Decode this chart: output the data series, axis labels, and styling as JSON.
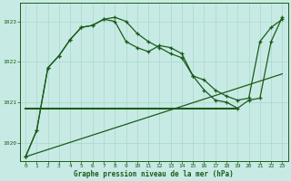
{
  "background_color": "#c8eae4",
  "grid_color": "#a8d8cc",
  "line_color": "#1a5c1a",
  "xlabel": "Graphe pression niveau de la mer (hPa)",
  "xlim": [
    -0.5,
    23.5
  ],
  "ylim": [
    1019.55,
    1023.45
  ],
  "yticks": [
    1020,
    1021,
    1022,
    1023
  ],
  "xticks": [
    0,
    1,
    2,
    3,
    4,
    5,
    6,
    7,
    8,
    9,
    10,
    11,
    12,
    13,
    14,
    15,
    16,
    17,
    18,
    19,
    20,
    21,
    22,
    23
  ],
  "series1_marked": {
    "x": [
      0,
      1,
      2,
      3,
      4,
      5,
      6,
      7,
      8,
      9,
      10,
      11,
      12,
      13,
      14,
      15,
      16,
      17,
      18,
      19,
      20,
      21,
      22,
      23
    ],
    "y": [
      1019.65,
      1020.3,
      1021.85,
      1022.15,
      1022.55,
      1022.85,
      1022.9,
      1023.05,
      1023.1,
      1023.0,
      1022.7,
      1022.5,
      1022.35,
      1022.2,
      1022.1,
      1021.65,
      1021.55,
      1021.3,
      1021.15,
      1021.05,
      1021.1,
      1022.5,
      1022.85,
      1023.05
    ]
  },
  "series2_marked": {
    "x": [
      0,
      1,
      2,
      3,
      4,
      5,
      6,
      7,
      8,
      9,
      10,
      11,
      12,
      13,
      14,
      15,
      16,
      17,
      18,
      19,
      20,
      21,
      22,
      23
    ],
    "y": [
      1019.65,
      1020.3,
      1021.85,
      1022.15,
      1022.55,
      1022.85,
      1022.9,
      1023.05,
      1023.0,
      1022.5,
      1022.35,
      1022.25,
      1022.4,
      1022.35,
      1022.2,
      1021.65,
      1021.3,
      1021.05,
      1021.0,
      1020.85,
      1021.05,
      1021.1,
      1022.5,
      1023.1
    ]
  },
  "series3_flat": {
    "x": [
      0,
      19
    ],
    "y": [
      1020.85,
      1020.85
    ]
  },
  "series4_rising": {
    "x": [
      0,
      23
    ],
    "y": [
      1019.65,
      1021.7
    ]
  }
}
